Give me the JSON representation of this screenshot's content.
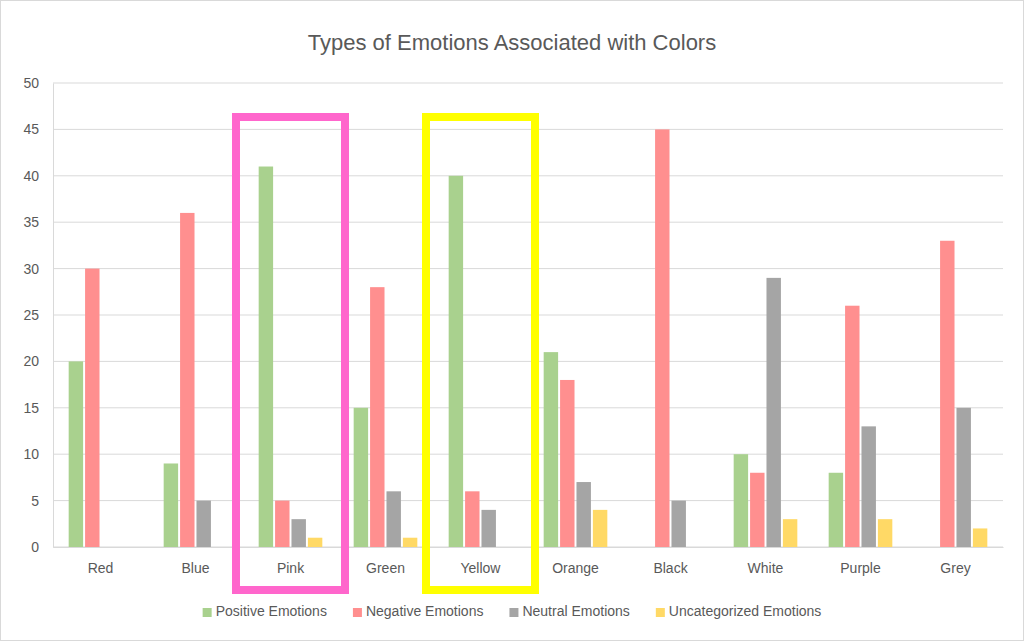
{
  "chart_data": {
    "type": "bar",
    "title": "Types of Emotions Associated with Colors",
    "categories": [
      "Red",
      "Blue",
      "Pink",
      "Green",
      "Yellow",
      "Orange",
      "Black",
      "White",
      "Purple",
      "Grey"
    ],
    "series": [
      {
        "name": "Positive Emotions",
        "color": "#a9d18e",
        "values": [
          20,
          9,
          41,
          15,
          40,
          21,
          0,
          10,
          8,
          0
        ]
      },
      {
        "name": "Negative Emotions",
        "color": "#ff8f8f",
        "values": [
          30,
          36,
          5,
          28,
          6,
          18,
          45,
          8,
          26,
          33
        ]
      },
      {
        "name": "Neutral Emotions",
        "color": "#a5a5a5",
        "values": [
          0,
          5,
          3,
          6,
          4,
          7,
          5,
          29,
          13,
          15
        ]
      },
      {
        "name": "Uncategorized Emotions",
        "color": "#ffd966",
        "values": [
          0,
          0,
          1,
          1,
          0,
          4,
          0,
          3,
          3,
          2
        ]
      }
    ],
    "ylim": [
      0,
      50
    ],
    "yticks": [
      0,
      5,
      10,
      15,
      20,
      25,
      30,
      35,
      40,
      45,
      50
    ],
    "grid": true,
    "legend": "bottom"
  }
}
